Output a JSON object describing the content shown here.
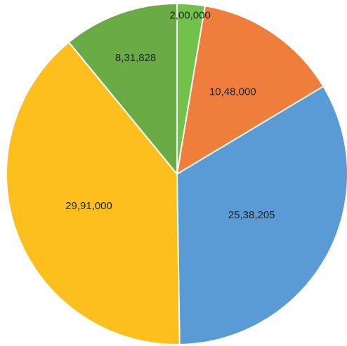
{
  "chart_data": {
    "type": "pie",
    "title": "",
    "categories": [
      "",
      "",
      "",
      "",
      ""
    ],
    "values": [
      200000,
      1048000,
      2538205,
      2991000,
      831828
    ],
    "data_labels": [
      "2,00,000",
      "10,48,000",
      "25,38,205",
      "29,91,000",
      "8,31,828"
    ],
    "colors": [
      "#71c24a",
      "#ef7d3c",
      "#5b9bd5",
      "#fcbf1e",
      "#6aab46"
    ],
    "legend": "none",
    "start_angle_deg": 0,
    "direction": "clockwise"
  }
}
